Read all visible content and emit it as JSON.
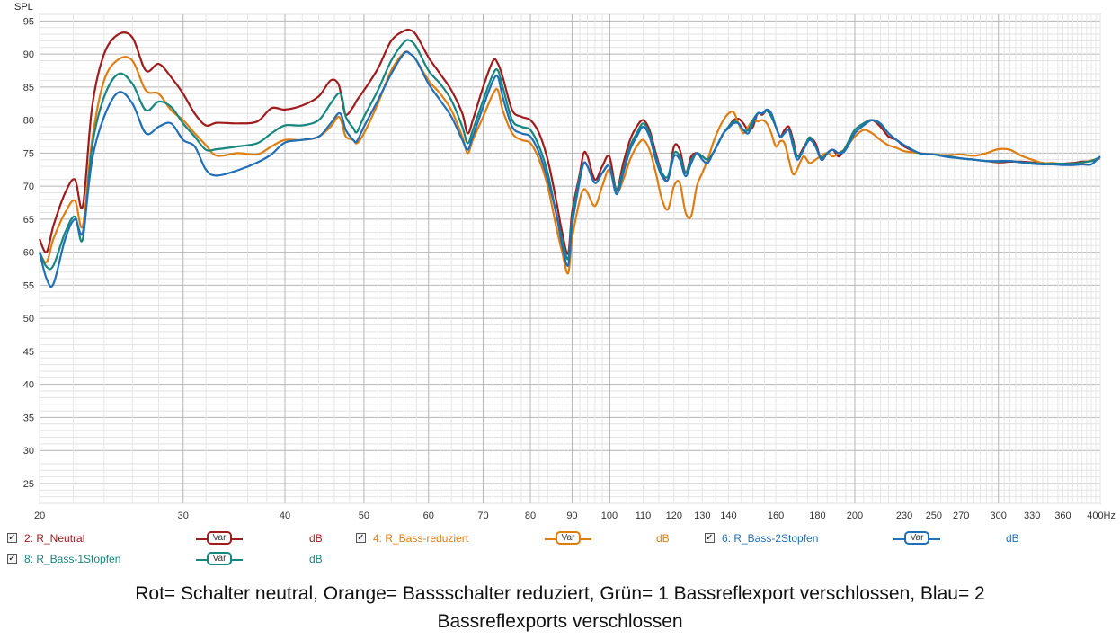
{
  "chart_data": {
    "type": "line",
    "ylabel": "SPL",
    "xunit": "Hz",
    "xscale": "log",
    "xlim": [
      20,
      400
    ],
    "ylim": [
      22,
      96
    ],
    "yticks": [
      25,
      30,
      35,
      40,
      45,
      50,
      55,
      60,
      65,
      70,
      75,
      80,
      85,
      90,
      95
    ],
    "xticks": [
      {
        "v": 20,
        "label": "20"
      },
      {
        "v": 30,
        "label": "30"
      },
      {
        "v": 40,
        "label": "40"
      },
      {
        "v": 50,
        "label": "50"
      },
      {
        "v": 60,
        "label": "60"
      },
      {
        "v": 70,
        "label": "70"
      },
      {
        "v": 80,
        "label": "80"
      },
      {
        "v": 90,
        "label": "90"
      },
      {
        "v": 100,
        "label": "100"
      },
      {
        "v": 110,
        "label": "110"
      },
      {
        "v": 120,
        "label": "120"
      },
      {
        "v": 130,
        "label": "130"
      },
      {
        "v": 140,
        "label": "140"
      },
      {
        "v": 160,
        "label": "160"
      },
      {
        "v": 180,
        "label": "180"
      },
      {
        "v": 200,
        "label": "200"
      },
      {
        "v": 230,
        "label": "230"
      },
      {
        "v": 250,
        "label": "250"
      },
      {
        "v": 270,
        "label": "270"
      },
      {
        "v": 300,
        "label": "300"
      },
      {
        "v": 330,
        "label": "330"
      },
      {
        "v": 360,
        "label": "360"
      },
      {
        "v": 400,
        "label": "400Hz"
      }
    ],
    "grid": true,
    "series": [
      {
        "name": "2: R_Neutral",
        "color": "#a01c1c",
        "x": [
          20,
          20.4,
          20.8,
          21.5,
          22.1,
          22.6,
          23.2,
          24,
          25,
          26,
          27,
          28,
          29,
          30,
          31,
          32,
          33,
          35,
          37,
          38.5,
          40,
          42,
          44,
          45.5,
          46.5,
          47,
          47.5,
          48.5,
          49,
          50,
          52,
          54,
          56,
          57,
          58,
          60,
          62,
          64,
          66,
          67,
          68,
          70,
          72,
          73,
          74,
          76,
          78,
          80,
          82,
          84,
          86,
          87.5,
          89,
          90,
          92,
          93,
          94,
          96,
          98,
          100,
          102,
          104,
          106,
          108,
          110,
          112,
          114,
          116,
          118,
          120,
          122,
          124,
          126,
          128,
          130,
          132,
          134,
          136,
          138,
          140,
          142,
          144,
          146,
          148,
          150,
          152,
          154,
          156,
          158,
          160,
          162,
          164,
          166,
          168,
          170,
          173,
          176,
          179,
          182,
          185,
          188,
          191,
          194,
          197,
          200,
          205,
          210,
          215,
          220,
          225,
          230,
          240,
          250,
          260,
          270,
          280,
          290,
          300,
          310,
          320,
          330,
          340,
          350,
          360,
          370,
          380,
          390,
          400
        ],
        "y": [
          62,
          60,
          64,
          69,
          71,
          67,
          82,
          90,
          93,
          92.5,
          87.5,
          88.5,
          86.5,
          84,
          81,
          79.2,
          79.6,
          79.5,
          79.8,
          81.8,
          81.6,
          82.2,
          83.6,
          86,
          85.5,
          83,
          80.8,
          82,
          83,
          84.5,
          87.8,
          92,
          93.5,
          93.6,
          92.8,
          89.5,
          87,
          84.5,
          81,
          78,
          80,
          85,
          89,
          88.5,
          86.5,
          81.5,
          80.5,
          80,
          78,
          74,
          68,
          63,
          59.8,
          66,
          72,
          75,
          74.5,
          71,
          73,
          74.5,
          69.5,
          73.5,
          77,
          79,
          80,
          78.5,
          75,
          72,
          71,
          76,
          75.5,
          72,
          74.5,
          75,
          74.5,
          74,
          75,
          76.5,
          78,
          79,
          80,
          80.2,
          79.5,
          78.5,
          79,
          81,
          80.8,
          81.5,
          81,
          79,
          77.5,
          78.5,
          79,
          77,
          74.5,
          75.8,
          77.2,
          76.5,
          74,
          75,
          75.5,
          74.5,
          75.5,
          77,
          78.5,
          79.5,
          80,
          79,
          77.5,
          77,
          76,
          75,
          74.8,
          74.5,
          74.2,
          74,
          73.8,
          73.6,
          73.7,
          73.7,
          73.6,
          73.5,
          73.4,
          73.4,
          73.5,
          73.7,
          73.8,
          74.2
        ]
      },
      {
        "name": "4: R_Bass-reduziert",
        "color": "#e07d10",
        "x": [
          20,
          20.4,
          20.8,
          21.5,
          22.1,
          22.6,
          23.2,
          24,
          25,
          26,
          27,
          28,
          29,
          30,
          31,
          32,
          33,
          35,
          37,
          38.5,
          40,
          42,
          44,
          45.5,
          46.5,
          47,
          47.5,
          48.5,
          49,
          50,
          52,
          54,
          56,
          57,
          58,
          60,
          62,
          64,
          66,
          67,
          68,
          70,
          72,
          73,
          74,
          76,
          78,
          80,
          82,
          84,
          86,
          87.5,
          89,
          90,
          92,
          93,
          94,
          96,
          98,
          100,
          102,
          104,
          106,
          108,
          110,
          112,
          114,
          116,
          118,
          120,
          122,
          124,
          126,
          128,
          130,
          132,
          134,
          136,
          138,
          140,
          142,
          144,
          146,
          148,
          150,
          152,
          154,
          156,
          158,
          160,
          162,
          164,
          166,
          168,
          170,
          173,
          176,
          179,
          182,
          185,
          188,
          191,
          194,
          197,
          200,
          205,
          210,
          215,
          220,
          225,
          230,
          240,
          250,
          260,
          270,
          280,
          290,
          300,
          310,
          320,
          330,
          340,
          350,
          360,
          370,
          380,
          390,
          400
        ],
        "y": [
          60,
          58.5,
          62,
          66,
          67.8,
          64,
          77,
          86,
          89.2,
          89,
          84.5,
          84,
          81.5,
          80,
          78,
          76.2,
          74.6,
          75,
          74.8,
          76,
          77,
          77,
          77.5,
          79,
          80.5,
          79.5,
          77.5,
          77,
          76.5,
          78,
          82.5,
          87.5,
          90.2,
          90,
          89,
          86,
          84,
          81.5,
          77.5,
          75,
          77,
          80.5,
          84,
          84.5,
          81.5,
          78,
          77,
          76.5,
          74,
          70,
          64,
          60,
          56.8,
          62,
          68,
          69.5,
          69,
          67,
          70,
          72.5,
          69,
          71,
          74,
          76,
          77,
          75.5,
          72,
          68,
          66.5,
          70,
          70.5,
          66,
          65.5,
          70,
          72,
          74,
          76.5,
          78.5,
          80,
          81,
          81.2,
          79.5,
          78,
          79,
          80,
          79.8,
          80,
          79.5,
          78,
          76,
          76.8,
          76.5,
          74,
          71.8,
          72.6,
          74.5,
          73.5,
          74,
          74.6,
          75,
          74.5,
          75,
          75.5,
          76.5,
          77.5,
          78.5,
          78,
          77,
          76.2,
          75.8,
          75.3,
          75,
          74.8,
          74.7,
          74.8,
          74.6,
          75,
          75.6,
          75.5,
          74.6,
          74,
          73.5,
          73.5,
          73.3,
          73.2,
          73.5,
          73.9,
          74.2
        ]
      },
      {
        "name": "6: R_Bass-2Stopfen",
        "color": "#1f6fb8",
        "x": [
          20,
          20.4,
          20.8,
          21.5,
          22.1,
          22.6,
          23.2,
          24,
          25,
          26,
          27,
          28,
          29,
          30,
          31,
          32,
          33,
          35,
          37,
          38.5,
          40,
          42,
          44,
          45.5,
          46.5,
          47,
          47.5,
          48.5,
          49,
          50,
          52,
          54,
          56,
          57,
          58,
          60,
          62,
          64,
          66,
          67,
          68,
          70,
          72,
          73,
          74,
          76,
          78,
          80,
          82,
          84,
          86,
          87.5,
          89,
          90,
          92,
          93,
          94,
          96,
          98,
          100,
          102,
          104,
          106,
          108,
          110,
          112,
          114,
          116,
          118,
          120,
          122,
          124,
          126,
          128,
          130,
          132,
          134,
          136,
          138,
          140,
          142,
          144,
          146,
          148,
          150,
          152,
          154,
          156,
          158,
          160,
          162,
          164,
          166,
          168,
          170,
          173,
          176,
          179,
          182,
          185,
          188,
          191,
          194,
          197,
          200,
          205,
          210,
          215,
          220,
          225,
          230,
          240,
          250,
          260,
          270,
          280,
          290,
          300,
          310,
          320,
          330,
          340,
          350,
          360,
          370,
          380,
          390,
          400
        ],
        "y": [
          60,
          56,
          55.2,
          62,
          65,
          63,
          74,
          80.5,
          84.2,
          82.5,
          78,
          79,
          79.5,
          77,
          76,
          72.5,
          71.6,
          72.4,
          73.6,
          74.8,
          76.6,
          77,
          77.5,
          79.5,
          81,
          80.5,
          78.5,
          77,
          76.8,
          79,
          83,
          87,
          90.1,
          90,
          89,
          85.5,
          83,
          80.5,
          77,
          75.5,
          77.5,
          82,
          86,
          86.5,
          83.5,
          79,
          78,
          77.5,
          75,
          71,
          66,
          61,
          58,
          64,
          71,
          73.5,
          73,
          70.5,
          72,
          73,
          68.8,
          72,
          75.5,
          77.5,
          79,
          77.5,
          74,
          71.5,
          71,
          74.5,
          74,
          71.5,
          73.5,
          75,
          74,
          73.5,
          75,
          76.5,
          78,
          78.8,
          79.5,
          79.5,
          78.5,
          78,
          79.5,
          81,
          81,
          81.6,
          81,
          79,
          77.5,
          78,
          78.5,
          76,
          74,
          75.5,
          77,
          76,
          74,
          75,
          75.5,
          75,
          75.2,
          76.5,
          78,
          79.2,
          80,
          79.5,
          78,
          77,
          76.2,
          75,
          74.8,
          74.4,
          74.2,
          74,
          73.8,
          73.8,
          73.8,
          73.6,
          73.4,
          73.3,
          73.3,
          73.2,
          73.2,
          73.3,
          73.3,
          74.5
        ]
      },
      {
        "name": "8: R_Bass-1Stopfen",
        "color": "#16877f",
        "x": [
          20,
          20.4,
          20.8,
          21.5,
          22.1,
          22.6,
          23.2,
          24,
          25,
          26,
          27,
          28,
          29,
          30,
          31,
          32,
          33,
          35,
          37,
          38.5,
          40,
          42,
          44,
          45.5,
          46.5,
          47,
          47.5,
          48.5,
          49,
          50,
          52,
          54,
          56,
          57,
          58,
          60,
          62,
          64,
          66,
          67,
          68,
          70,
          72,
          73,
          74,
          76,
          78,
          80,
          82,
          84,
          86,
          87.5,
          89,
          90,
          92,
          93,
          94,
          96,
          98,
          100,
          102,
          104,
          106,
          108,
          110,
          112,
          114,
          116,
          118,
          120,
          122,
          124,
          126,
          128,
          130,
          132,
          134,
          136,
          138,
          140,
          142,
          144,
          146,
          148,
          150,
          152,
          154,
          156,
          158,
          160,
          162,
          164,
          166,
          168,
          170,
          173,
          176,
          179,
          182,
          185,
          188,
          191,
          194,
          197,
          200,
          205,
          210,
          215,
          220,
          225,
          230,
          240,
          250,
          260,
          270,
          280,
          290,
          300,
          310,
          320,
          330,
          340,
          350,
          360,
          370,
          380,
          390,
          400
        ],
        "y": [
          60,
          57.8,
          58,
          63,
          65.4,
          62,
          76,
          83.5,
          87,
          85.5,
          81.5,
          82.8,
          82,
          79.5,
          77.5,
          75.5,
          75.6,
          76,
          76.5,
          78,
          79.2,
          79.2,
          80,
          82.5,
          84,
          83.5,
          80.5,
          78.8,
          78.2,
          80.5,
          84.5,
          89,
          91.8,
          92,
          91,
          87.5,
          85.5,
          83,
          79,
          76.5,
          78.5,
          83,
          87,
          87.5,
          85,
          80,
          79,
          78.5,
          76,
          72,
          66,
          62,
          59,
          65,
          71.5,
          73.5,
          73,
          70.5,
          72,
          73,
          69.5,
          72.5,
          76,
          78,
          79.5,
          78,
          74.5,
          72,
          71.5,
          75,
          74.5,
          72,
          74,
          75,
          74.5,
          74,
          75,
          76.5,
          78,
          79,
          79.8,
          79.5,
          78.5,
          78.5,
          80,
          81,
          81,
          81.4,
          80.5,
          79,
          77.5,
          78,
          78.5,
          76.5,
          74.5,
          75.5,
          77.4,
          76,
          74.3,
          75,
          75.5,
          75,
          75.5,
          77,
          78.5,
          79.5,
          80,
          79.4,
          78,
          77,
          76.2,
          75,
          74.8,
          74.5,
          74.2,
          74,
          73.8,
          73.7,
          73.8,
          73.6,
          73.5,
          73.4,
          73.4,
          73.4,
          73.4,
          73.6,
          73.8,
          74.4
        ]
      }
    ]
  },
  "legend": [
    {
      "label": "2: R_Neutral",
      "button": "Var",
      "unit": "dB",
      "color": "#a01c1c",
      "checked": "✓"
    },
    {
      "label": "4: R_Bass-reduziert",
      "button": "Var",
      "unit": "dB",
      "color": "#e07d10",
      "checked": "✓"
    },
    {
      "label": "6: R_Bass-2Stopfen",
      "button": "Var",
      "unit": "dB",
      "color": "#1f6fb8",
      "checked": "✓"
    },
    {
      "label": "8: R_Bass-1Stopfen",
      "button": "Var",
      "unit": "dB",
      "color": "#16877f",
      "checked": "✓"
    }
  ],
  "caption": {
    "line1": "Rot= Schalter neutral, Orange= Bassschalter reduziert, Grün= 1 Bassreflexport verschlossen, Blau= 2",
    "line2": "Bassreflexports verschlossen"
  }
}
